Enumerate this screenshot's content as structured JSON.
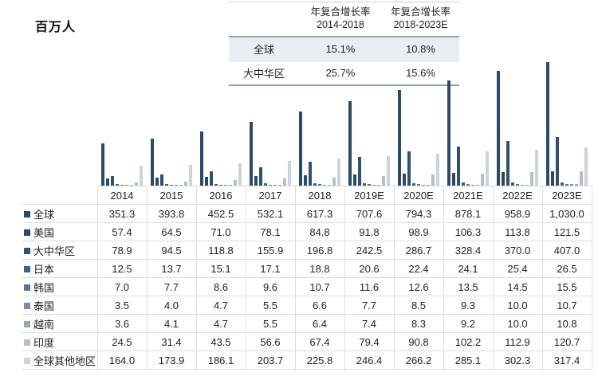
{
  "unit_label": "百万人",
  "growth_table": {
    "headers": [
      {
        "line1": "年复合增长率",
        "line2": "2014-2018"
      },
      {
        "line1": "年复合增长率",
        "line2": "2018-2023E"
      }
    ],
    "rows": [
      {
        "label": "全球",
        "values": [
          "15.1%",
          "10.8%"
        ]
      },
      {
        "label": "大中华区",
        "values": [
          "25.7%",
          "15.6%"
        ]
      }
    ]
  },
  "chart_data": {
    "type": "bar",
    "title": "",
    "ylabel": "百万人",
    "ylim": [
      0,
      1030
    ],
    "grid": false,
    "legend_position": "table-left-column",
    "categories": [
      "2014",
      "2015",
      "2016",
      "2017",
      "2018",
      "2019E",
      "2020E",
      "2021E",
      "2022E",
      "2023E"
    ],
    "series": [
      {
        "name": "全球",
        "color": "#2e4a65",
        "values": [
          351.3,
          393.8,
          452.5,
          532.1,
          617.3,
          707.6,
          794.3,
          878.1,
          958.9,
          1030.0
        ]
      },
      {
        "name": "美国",
        "color": "#2e4a65",
        "values": [
          57.4,
          64.5,
          71.0,
          78.1,
          84.8,
          91.8,
          98.9,
          106.3,
          113.8,
          121.5
        ]
      },
      {
        "name": "大中华区",
        "color": "#33516d",
        "values": [
          78.9,
          94.5,
          118.8,
          155.9,
          196.8,
          242.5,
          286.7,
          328.4,
          370.0,
          407.0
        ]
      },
      {
        "name": "日本",
        "color": "#42617e",
        "values": [
          12.5,
          13.7,
          15.1,
          17.1,
          18.8,
          20.6,
          22.4,
          24.1,
          25.4,
          26.5
        ]
      },
      {
        "name": "韩国",
        "color": "#5b7490",
        "values": [
          7.0,
          7.7,
          8.6,
          9.6,
          10.7,
          11.6,
          12.6,
          13.5,
          14.5,
          15.5
        ]
      },
      {
        "name": "泰国",
        "color": "#7b8ea3",
        "values": [
          3.5,
          4.0,
          4.7,
          5.5,
          6.6,
          7.7,
          8.5,
          9.3,
          10.0,
          10.7
        ]
      },
      {
        "name": "越南",
        "color": "#98a7b7",
        "values": [
          3.6,
          4.1,
          4.7,
          5.5,
          6.4,
          7.4,
          8.3,
          9.2,
          10.0,
          10.8
        ]
      },
      {
        "name": "印度",
        "color": "#b4bfca",
        "values": [
          24.5,
          31.4,
          43.5,
          56.6,
          67.4,
          79.4,
          90.8,
          102.2,
          112.9,
          120.7
        ]
      },
      {
        "name": "全球其他地区",
        "color": "#cbd3db",
        "values": [
          164.0,
          173.9,
          186.1,
          203.7,
          225.8,
          246.4,
          266.2,
          285.1,
          302.3,
          317.4
        ]
      }
    ]
  }
}
